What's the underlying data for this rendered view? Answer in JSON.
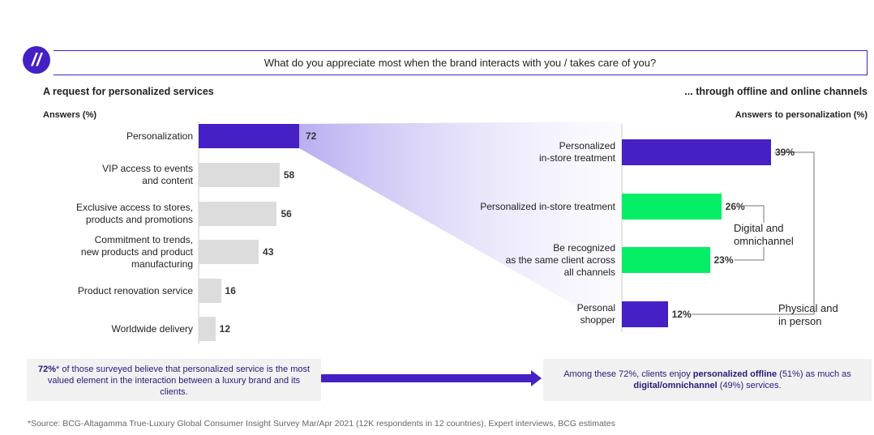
{
  "header": {
    "question": "What do you appreciate most when the brand interacts with you / takes care of you?",
    "logo": "quote-icon"
  },
  "colors": {
    "purple": "#4520C4",
    "green": "#05EE66",
    "grey": "#DCDCDC",
    "panel": "#F1F1F2"
  },
  "chart_data": [
    {
      "type": "bar",
      "orientation": "horizontal",
      "title": "A request for personalized services",
      "ylabel": "Answers (%)",
      "categories": [
        "Personalization",
        "VIP access to events and content",
        "Exclusive access to stores, products and promotions",
        "Commitment to trends, new products and product manufacturing",
        "Product renovation service",
        "Worldwide delivery"
      ],
      "labels": [
        [
          "Personalization"
        ],
        [
          "VIP access to events",
          "and content"
        ],
        [
          "Exclusive access to stores,",
          "products and promotions"
        ],
        [
          "Commitment to trends,",
          "new products and product",
          "manufacturing"
        ],
        [
          "Product renovation service"
        ],
        [
          "Worldwide delivery"
        ]
      ],
      "values": [
        72,
        58,
        56,
        43,
        16,
        12
      ],
      "value_labels": [
        "72",
        "58",
        "56",
        "43",
        "16",
        "12"
      ],
      "highlight": [
        true,
        false,
        false,
        false,
        false,
        false
      ]
    },
    {
      "type": "bar",
      "orientation": "horizontal",
      "title": "... through offline and online channels",
      "ylabel": "Answers to personalization (%)",
      "labels": [
        [
          "Personalized",
          "in-store treatment"
        ],
        [
          "Personalized in-store treatment"
        ],
        [
          "Be recognized",
          "as the same client across",
          "all channels"
        ],
        [
          "Personal",
          "shopper"
        ]
      ],
      "values": [
        39,
        26,
        23,
        12
      ],
      "value_labels": [
        "39%",
        "26%",
        "23%",
        "12%"
      ],
      "groups": [
        "physical",
        "digital",
        "digital",
        "physical"
      ],
      "group_labels": {
        "digital": [
          "Digital and",
          "omnichannel"
        ],
        "physical": [
          "Physical and",
          "in person"
        ]
      }
    }
  ],
  "footer_left": {
    "bold": "72%",
    "text": "* of those surveyed believe that personalized service is the most valued element in the interaction between a luxury brand and its clients."
  },
  "footer_right": {
    "t1": "Among these 72%, clients enjoy ",
    "b1": "personalized offline",
    "t2": " (51%) as much as ",
    "b2": "digital/omnichannel",
    "t3": " (49%) services."
  },
  "source": "*Source: BCG-Altagamma True-Luxury Global Consumer Insight Survey Mar/Apr 2021 (12K respondents in 12 countries), Expert interviews, BCG estimates"
}
